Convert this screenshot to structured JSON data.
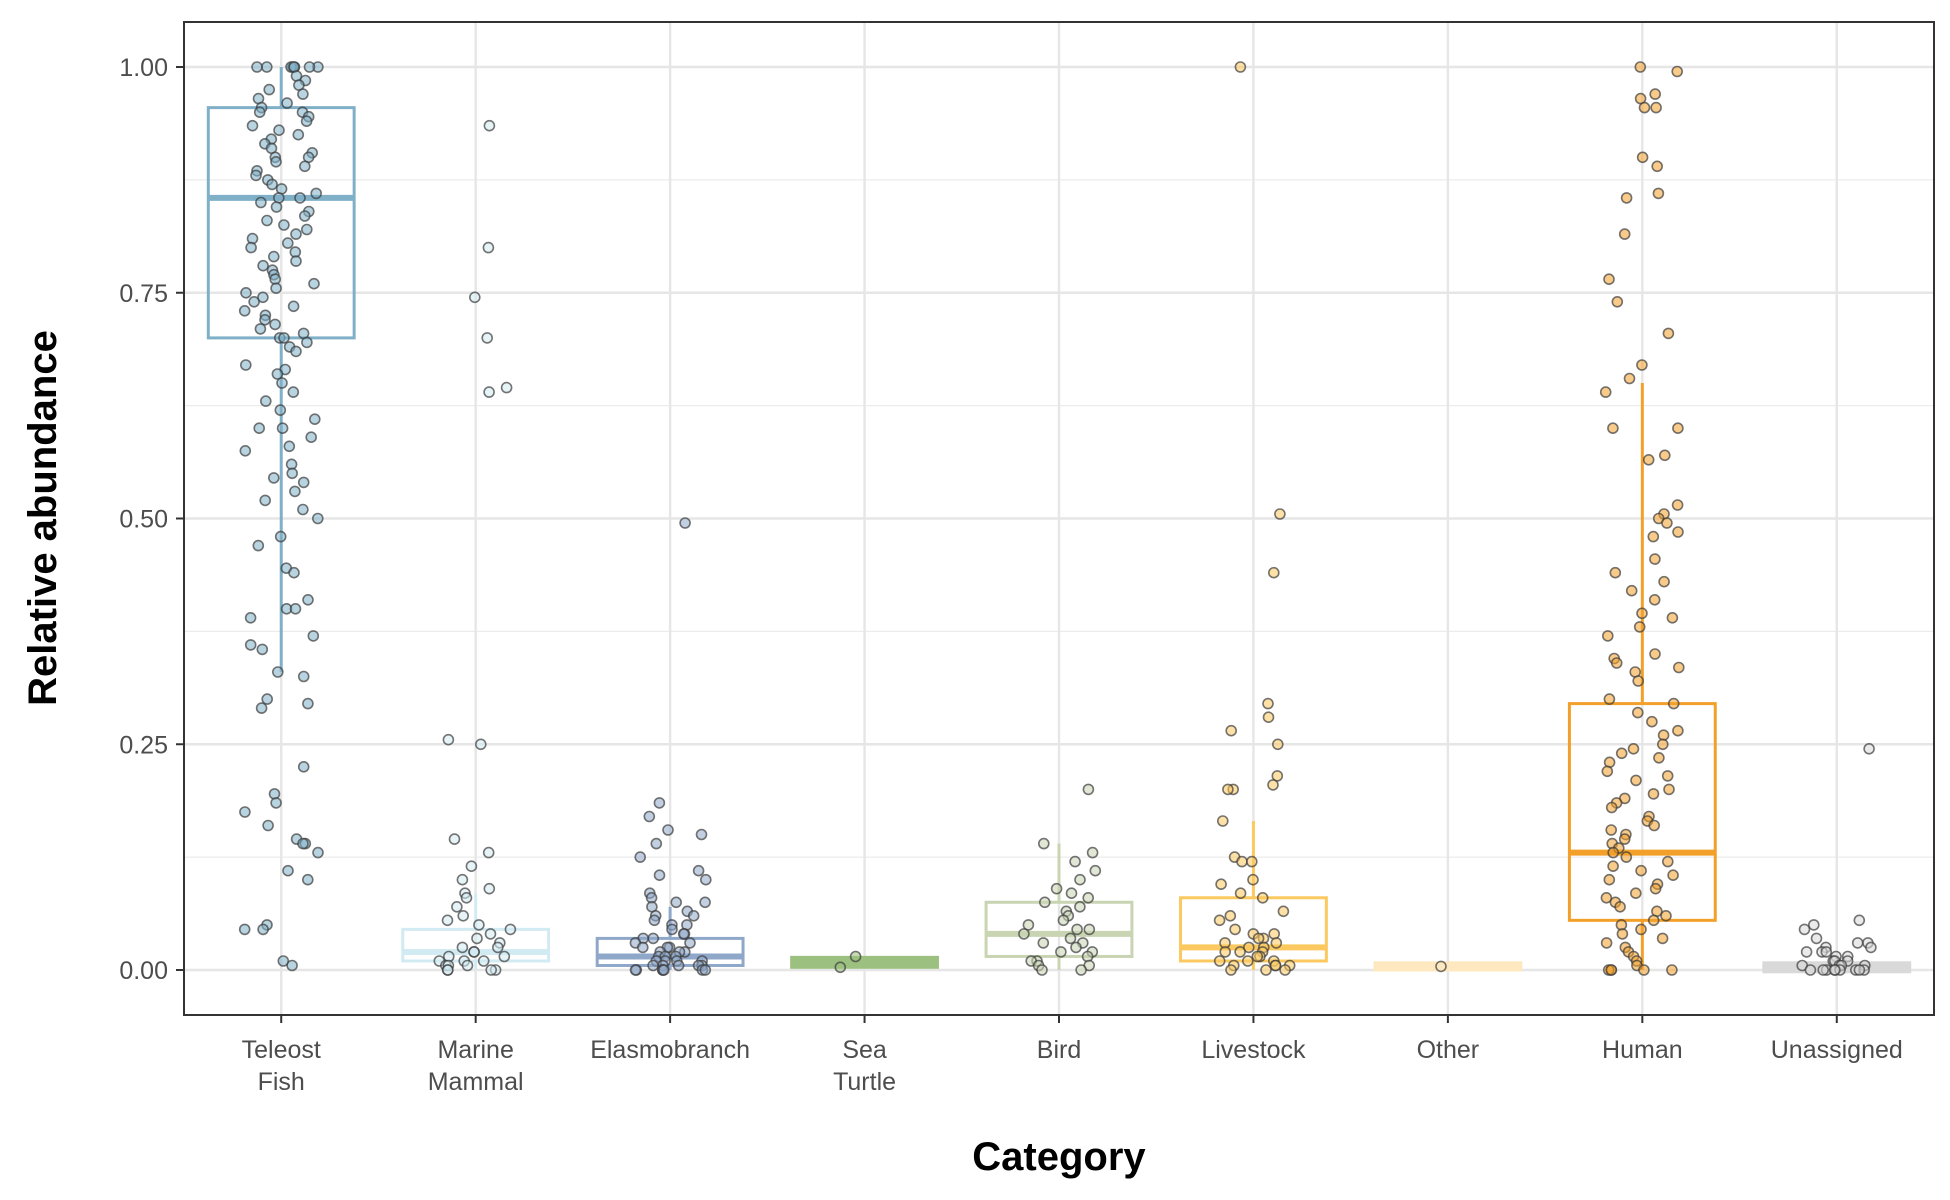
{
  "chart_data": {
    "type": "box",
    "title": "",
    "xlabel": "Category",
    "ylabel": "Relative abundance",
    "ylim": [
      -0.05,
      1.05
    ],
    "yticks": [
      0.0,
      0.25,
      0.5,
      0.75,
      1.0
    ],
    "ytick_labels": [
      "0.00",
      "0.25",
      "0.50",
      "0.75",
      "1.00"
    ],
    "grid": true,
    "legend": "none",
    "categories": [
      {
        "name": "Teleost Fish",
        "label_lines": [
          "Teleost",
          "Fish"
        ],
        "color": "#7fb0c8",
        "box": {
          "q1": 0.7,
          "median": 0.855,
          "q3": 0.955,
          "whisker_low": 0.33,
          "whisker_high": 1.0
        },
        "points": [
          1.0,
          1.0,
          1.0,
          1.0,
          1.0,
          1.0,
          1.0,
          1.0,
          0.99,
          0.985,
          0.98,
          0.975,
          0.97,
          0.965,
          0.96,
          0.955,
          0.95,
          0.95,
          0.945,
          0.94,
          0.935,
          0.93,
          0.925,
          0.92,
          0.915,
          0.91,
          0.905,
          0.9,
          0.9,
          0.895,
          0.89,
          0.885,
          0.88,
          0.875,
          0.87,
          0.865,
          0.86,
          0.855,
          0.855,
          0.85,
          0.845,
          0.84,
          0.835,
          0.83,
          0.825,
          0.82,
          0.815,
          0.81,
          0.805,
          0.8,
          0.795,
          0.79,
          0.785,
          0.78,
          0.775,
          0.77,
          0.765,
          0.76,
          0.755,
          0.75,
          0.745,
          0.74,
          0.735,
          0.73,
          0.725,
          0.72,
          0.715,
          0.71,
          0.705,
          0.7,
          0.7,
          0.695,
          0.69,
          0.685,
          0.67,
          0.665,
          0.66,
          0.65,
          0.64,
          0.63,
          0.62,
          0.61,
          0.6,
          0.6,
          0.59,
          0.58,
          0.575,
          0.56,
          0.55,
          0.545,
          0.54,
          0.53,
          0.52,
          0.51,
          0.5,
          0.48,
          0.47,
          0.445,
          0.44,
          0.41,
          0.4,
          0.4,
          0.39,
          0.37,
          0.36,
          0.355,
          0.33,
          0.325,
          0.3,
          0.295,
          0.29,
          0.225,
          0.195,
          0.185,
          0.175,
          0.16,
          0.145,
          0.14,
          0.14,
          0.13,
          0.11,
          0.1,
          0.05,
          0.045,
          0.045,
          0.01,
          0.005
        ]
      },
      {
        "name": "Marine Mammal",
        "label_lines": [
          "Marine",
          "Mammal"
        ],
        "color": "#d2ebf3",
        "box": {
          "q1": 0.01,
          "median": 0.02,
          "q3": 0.045,
          "whisker_low": 0.0,
          "whisker_high": 0.085
        },
        "points": [
          0.935,
          0.8,
          0.745,
          0.7,
          0.645,
          0.64,
          0.255,
          0.25,
          0.145,
          0.13,
          0.115,
          0.1,
          0.09,
          0.085,
          0.08,
          0.07,
          0.06,
          0.055,
          0.05,
          0.045,
          0.04,
          0.035,
          0.03,
          0.025,
          0.025,
          0.02,
          0.02,
          0.015,
          0.015,
          0.01,
          0.01,
          0.01,
          0.005,
          0.005,
          0.005,
          0.0,
          0.0,
          0.0,
          0.0
        ]
      },
      {
        "name": "Elasmobranch",
        "label_lines": [
          "Elasmobranch"
        ],
        "color": "#8fa7c9",
        "box": {
          "q1": 0.005,
          "median": 0.015,
          "q3": 0.035,
          "whisker_low": 0.0,
          "whisker_high": 0.07
        },
        "points": [
          0.495,
          0.185,
          0.17,
          0.155,
          0.15,
          0.14,
          0.125,
          0.11,
          0.105,
          0.1,
          0.085,
          0.08,
          0.075,
          0.075,
          0.07,
          0.065,
          0.06,
          0.06,
          0.055,
          0.05,
          0.05,
          0.045,
          0.04,
          0.04,
          0.035,
          0.035,
          0.03,
          0.03,
          0.025,
          0.025,
          0.025,
          0.02,
          0.02,
          0.02,
          0.015,
          0.015,
          0.015,
          0.01,
          0.01,
          0.01,
          0.01,
          0.005,
          0.005,
          0.005,
          0.005,
          0.005,
          0.0,
          0.0,
          0.0,
          0.0,
          0.0,
          0.0,
          0.0
        ]
      },
      {
        "name": "Sea Turtle",
        "label_lines": [
          "Sea",
          "Turtle"
        ],
        "color": "#9cc07f",
        "box": {
          "q1": 0.003,
          "median": 0.009,
          "q3": 0.014,
          "whisker_low": 0.003,
          "whisker_high": 0.014
        },
        "points": [
          0.015,
          0.003
        ]
      },
      {
        "name": "Bird",
        "label_lines": [
          "Bird"
        ],
        "color": "#c8d4b2",
        "box": {
          "q1": 0.015,
          "median": 0.04,
          "q3": 0.075,
          "whisker_low": 0.0,
          "whisker_high": 0.14
        },
        "points": [
          0.2,
          0.14,
          0.13,
          0.12,
          0.11,
          0.1,
          0.09,
          0.085,
          0.08,
          0.075,
          0.07,
          0.065,
          0.06,
          0.055,
          0.05,
          0.045,
          0.045,
          0.04,
          0.035,
          0.03,
          0.03,
          0.025,
          0.02,
          0.02,
          0.015,
          0.01,
          0.01,
          0.005,
          0.005,
          0.0,
          0.0
        ]
      },
      {
        "name": "Livestock",
        "label_lines": [
          "Livestock"
        ],
        "color": "#fbc95f",
        "box": {
          "q1": 0.01,
          "median": 0.025,
          "q3": 0.08,
          "whisker_low": 0.0,
          "whisker_high": 0.165
        },
        "points": [
          1.0,
          0.505,
          0.44,
          0.295,
          0.28,
          0.265,
          0.25,
          0.215,
          0.205,
          0.2,
          0.2,
          0.165,
          0.125,
          0.12,
          0.12,
          0.1,
          0.095,
          0.085,
          0.08,
          0.065,
          0.06,
          0.055,
          0.045,
          0.04,
          0.04,
          0.035,
          0.035,
          0.03,
          0.03,
          0.025,
          0.025,
          0.02,
          0.02,
          0.02,
          0.015,
          0.015,
          0.01,
          0.01,
          0.01,
          0.005,
          0.005,
          0.005,
          0.005,
          0.0,
          0.0,
          0.0
        ]
      },
      {
        "name": "Other",
        "label_lines": [
          "Other"
        ],
        "color": "#fde8c0",
        "box": {
          "q1": 0.0,
          "median": 0.004,
          "q3": 0.008,
          "whisker_low": 0.0,
          "whisker_high": 0.008
        },
        "points": [
          0.004
        ]
      },
      {
        "name": "Human",
        "label_lines": [
          "Human"
        ],
        "color": "#f3a02a",
        "box": {
          "q1": 0.055,
          "median": 0.13,
          "q3": 0.295,
          "whisker_low": 0.0,
          "whisker_high": 0.65
        },
        "points": [
          1.0,
          0.995,
          0.97,
          0.965,
          0.955,
          0.955,
          0.9,
          0.89,
          0.86,
          0.855,
          0.815,
          0.765,
          0.74,
          0.705,
          0.67,
          0.655,
          0.64,
          0.6,
          0.6,
          0.57,
          0.565,
          0.515,
          0.505,
          0.5,
          0.495,
          0.485,
          0.48,
          0.455,
          0.44,
          0.43,
          0.42,
          0.41,
          0.395,
          0.39,
          0.38,
          0.37,
          0.35,
          0.345,
          0.34,
          0.335,
          0.33,
          0.32,
          0.3,
          0.295,
          0.285,
          0.275,
          0.265,
          0.26,
          0.25,
          0.245,
          0.24,
          0.235,
          0.23,
          0.22,
          0.215,
          0.21,
          0.2,
          0.195,
          0.19,
          0.185,
          0.18,
          0.17,
          0.165,
          0.16,
          0.155,
          0.15,
          0.145,
          0.14,
          0.135,
          0.13,
          0.125,
          0.12,
          0.115,
          0.11,
          0.105,
          0.1,
          0.095,
          0.09,
          0.085,
          0.08,
          0.075,
          0.07,
          0.065,
          0.06,
          0.055,
          0.05,
          0.045,
          0.04,
          0.035,
          0.03,
          0.025,
          0.02,
          0.015,
          0.01,
          0.005,
          0.0,
          0.0,
          0.0,
          0.0,
          0.0
        ]
      },
      {
        "name": "Unassigned",
        "label_lines": [
          "Unassigned"
        ],
        "color": "#d9d9d9",
        "box": {
          "q1": -0.002,
          "median": 0.003,
          "q3": 0.008,
          "whisker_low": -0.002,
          "whisker_high": 0.008
        },
        "points": [
          0.245,
          0.055,
          0.05,
          0.045,
          0.035,
          0.03,
          0.03,
          0.025,
          0.025,
          0.02,
          0.02,
          0.02,
          0.015,
          0.015,
          0.01,
          0.01,
          0.01,
          0.005,
          0.005,
          0.005,
          0.005,
          0.0,
          0.0,
          0.0,
          0.0,
          0.0,
          0.0,
          0.0,
          0.0,
          0.0
        ]
      }
    ]
  }
}
